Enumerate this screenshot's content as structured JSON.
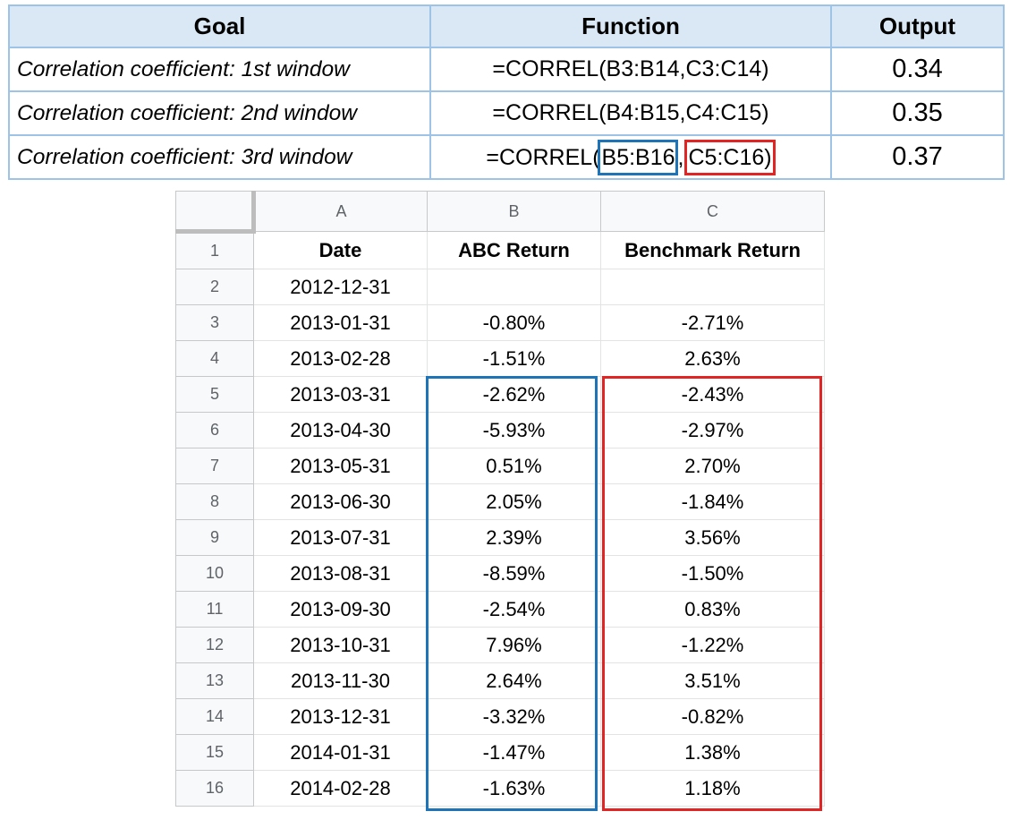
{
  "summary": {
    "headers": {
      "goal": "Goal",
      "function": "Function",
      "output": "Output"
    },
    "rows": [
      {
        "goal": "Correlation coefficient: 1st window",
        "function": "=CORREL(B3:B14,C3:C14)",
        "output": "0.34"
      },
      {
        "goal": "Correlation coefficient: 2nd window",
        "function": "=CORREL(B4:B15,C4:C15)",
        "output": "0.35"
      },
      {
        "goal": "Correlation coefficient: 3rd window",
        "function_parts": {
          "prefix": "=CORREL(",
          "range_b": "B5:B16",
          "sep": ",",
          "range_c": "C5:C16",
          "suffix": ")"
        },
        "output": "0.37"
      }
    ]
  },
  "sheet": {
    "col_headers": [
      "A",
      "B",
      "C"
    ],
    "header_row": {
      "num": "1",
      "a": "Date",
      "b": "ABC Return",
      "c": "Benchmark Return"
    },
    "rows": [
      {
        "num": "2",
        "a": "2012-12-31",
        "b": "",
        "c": ""
      },
      {
        "num": "3",
        "a": "2013-01-31",
        "b": "-0.80%",
        "c": "-2.71%"
      },
      {
        "num": "4",
        "a": "2013-02-28",
        "b": "-1.51%",
        "c": "2.63%"
      },
      {
        "num": "5",
        "a": "2013-03-31",
        "b": "-2.62%",
        "c": "-2.43%"
      },
      {
        "num": "6",
        "a": "2013-04-30",
        "b": "-5.93%",
        "c": "-2.97%"
      },
      {
        "num": "7",
        "a": "2013-05-31",
        "b": "0.51%",
        "c": "2.70%"
      },
      {
        "num": "8",
        "a": "2013-06-30",
        "b": "2.05%",
        "c": "-1.84%"
      },
      {
        "num": "9",
        "a": "2013-07-31",
        "b": "2.39%",
        "c": "3.56%"
      },
      {
        "num": "10",
        "a": "2013-08-31",
        "b": "-8.59%",
        "c": "-1.50%"
      },
      {
        "num": "11",
        "a": "2013-09-30",
        "b": "-2.54%",
        "c": "0.83%"
      },
      {
        "num": "12",
        "a": "2013-10-31",
        "b": "7.96%",
        "c": "-1.22%"
      },
      {
        "num": "13",
        "a": "2013-11-30",
        "b": "2.64%",
        "c": "3.51%"
      },
      {
        "num": "14",
        "a": "2013-12-31",
        "b": "-3.32%",
        "c": "-0.82%"
      },
      {
        "num": "15",
        "a": "2014-01-31",
        "b": "-1.47%",
        "c": "1.38%"
      },
      {
        "num": "16",
        "a": "2014-02-28",
        "b": "-1.63%",
        "c": "1.18%"
      }
    ],
    "highlight_colors": {
      "range_b": "#1f73b7",
      "range_c": "#e32424"
    }
  }
}
